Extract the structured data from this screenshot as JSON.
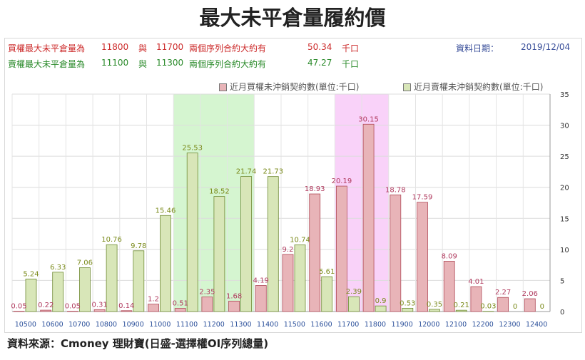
{
  "title": "最大未平倉量履約價",
  "info": {
    "call": {
      "label": "買權最大未平倉量為",
      "strike_a": "11800",
      "sep": "與",
      "strike_b": "11700",
      "desc": "兩個序列合約大約有",
      "value": "50.34",
      "unit": "千口"
    },
    "put": {
      "label": "賣權最大未平倉量為",
      "strike_a": "11100",
      "sep": "與",
      "strike_b": "11300",
      "desc": "兩個序列合約大約有",
      "value": "47.27",
      "unit": "千口"
    },
    "date_label": "資料日期：",
    "date": "2019/12/04"
  },
  "footer": "資料來源：Cmoney 理財寶(日盛-選擇權OI序列總量)",
  "colors": {
    "call": "#e8b4b8",
    "call_border": "#b04a58",
    "put": "#d8e6b8",
    "put_border": "#6f8a33",
    "call_text": "#b03a5e",
    "put_text": "#7a8a1a",
    "hl_green": "#d5f5d0",
    "hl_pink": "#f9d2f9"
  },
  "chart_data": {
    "type": "bar",
    "categories": [
      "10500",
      "10600",
      "10700",
      "10800",
      "10900",
      "11000",
      "11100",
      "11200",
      "11300",
      "11400",
      "11500",
      "11600",
      "11700",
      "11800",
      "11900",
      "12000",
      "12100",
      "12200",
      "12300",
      "12400"
    ],
    "series": [
      {
        "name": "近月買權未沖銷契約數(單位:千口)",
        "values": [
          0.05,
          0.22,
          0.05,
          0.31,
          0.14,
          1.2,
          0.51,
          2.35,
          1.68,
          4.19,
          9.2,
          18.93,
          20.19,
          30.15,
          18.78,
          17.59,
          8.09,
          4.01,
          2.27,
          2.06
        ]
      },
      {
        "name": "近月賣權未沖銷契約數(單位:千口)",
        "values": [
          5.24,
          6.33,
          7.06,
          10.76,
          9.78,
          15.46,
          25.53,
          18.52,
          21.74,
          21.73,
          10.74,
          5.61,
          2.39,
          0.9,
          0.53,
          0.35,
          0.21,
          0.03,
          0,
          0
        ]
      }
    ],
    "ylim": [
      0,
      35
    ],
    "yticks": [
      0,
      5,
      10,
      15,
      20,
      25,
      30,
      35
    ],
    "y_axis_side": "right",
    "grid": true,
    "legend_position": "top-right",
    "highlight_ranges": [
      {
        "from": "11100",
        "to": "11300",
        "color": "green"
      },
      {
        "from": "11700",
        "to": "11800",
        "color": "pink"
      }
    ]
  }
}
